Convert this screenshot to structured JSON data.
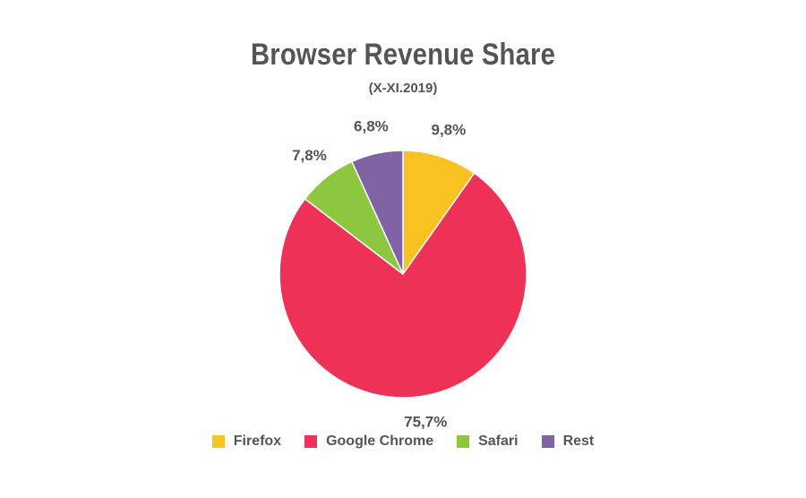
{
  "chart_data": {
    "type": "pie",
    "title": "Browser Revenue Share",
    "subtitle": "(X-XI.2019)",
    "categories": [
      "Firefox",
      "Google Chrome",
      "Safari",
      "Rest"
    ],
    "values": [
      9.8,
      75.7,
      7.8,
      6.8
    ],
    "value_labels": [
      "9,8%",
      "75,7%",
      "7,8%",
      "6,8%"
    ],
    "colors": [
      "#f9c220",
      "#ee3156",
      "#8dc63f",
      "#8063a3"
    ],
    "start": "12 o'clock",
    "direction": "clockwise",
    "legend_position": "bottom"
  }
}
